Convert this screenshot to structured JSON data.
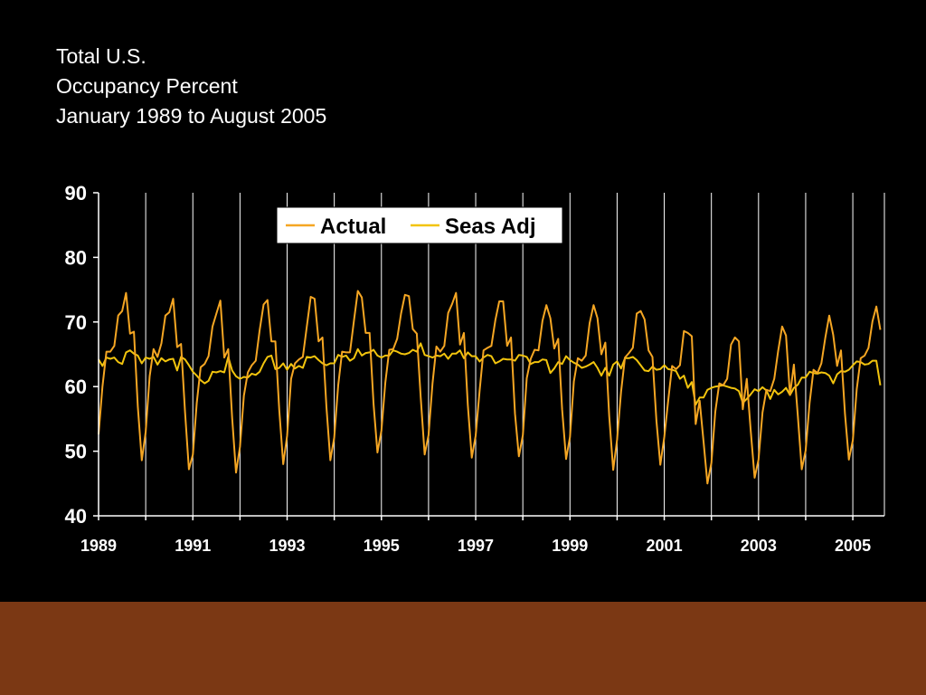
{
  "slide": {
    "background": "#000000",
    "band_color": "#7b3814",
    "title_lines": [
      "Total U.S.",
      "Occupancy Percent",
      "January 1989 to August 2005"
    ]
  },
  "chart_data": {
    "type": "line",
    "xlim": [
      1989.0,
      2005.67
    ],
    "ylim": [
      40,
      90
    ],
    "yticks": [
      40,
      50,
      60,
      70,
      80,
      90
    ],
    "xticks": [
      "1989",
      "1991",
      "1993",
      "1995",
      "1997",
      "1999",
      "2001",
      "2003",
      "2005"
    ],
    "grid": "vertical",
    "legend": "top-center",
    "start": "1989-01",
    "end": "2005-08",
    "frequency": "monthly",
    "series": [
      {
        "name": "Actual",
        "color": "#f5a623",
        "values": [
          52.6,
          60.0,
          65.4,
          65.4,
          66.3,
          71.0,
          71.7,
          74.5,
          68.2,
          68.5,
          56.9,
          48.6,
          53.0,
          61.6,
          65.8,
          64.6,
          66.7,
          71.0,
          71.5,
          73.6,
          66.1,
          66.6,
          56.1,
          47.2,
          49.5,
          57.5,
          63.0,
          63.5,
          64.7,
          69.3,
          71.3,
          73.3,
          64.5,
          65.8,
          55.2,
          46.7,
          50.7,
          58.6,
          62.2,
          63.3,
          64.0,
          68.7,
          72.7,
          73.4,
          67.0,
          67.0,
          56.4,
          48.0,
          52.4,
          61.2,
          63.6,
          64.2,
          64.6,
          69.2,
          73.9,
          73.6,
          67.0,
          67.6,
          56.8,
          48.6,
          52.1,
          60.2,
          65.4,
          65.3,
          65.3,
          70.2,
          74.8,
          73.8,
          68.3,
          68.3,
          57.3,
          49.8,
          53.2,
          60.6,
          65.7,
          65.8,
          67.4,
          71.3,
          74.2,
          74.0,
          68.9,
          68.2,
          58.4,
          49.5,
          52.5,
          60.5,
          66.2,
          65.4,
          66.3,
          71.4,
          72.8,
          74.5,
          66.5,
          68.3,
          57.2,
          49.0,
          52.4,
          59.4,
          65.6,
          66.0,
          66.3,
          70.3,
          73.2,
          73.2,
          66.3,
          67.6,
          55.8,
          49.2,
          52.5,
          61.3,
          64.3,
          65.7,
          65.6,
          70.2,
          72.6,
          70.6,
          65.9,
          67.4,
          56.5,
          48.8,
          52.2,
          60.8,
          64.4,
          64.0,
          64.8,
          69.8,
          72.6,
          70.6,
          65.0,
          66.8,
          55.4,
          47.1,
          51.8,
          59.2,
          64.5,
          65.2,
          66.0,
          71.3,
          71.7,
          70.4,
          65.6,
          64.6,
          54.7,
          47.9,
          52.2,
          57.8,
          63.2,
          62.7,
          63.3,
          68.6,
          68.3,
          67.8,
          54.2,
          57.8,
          51.5,
          45.0,
          48.2,
          56.1,
          60.5,
          60.2,
          61.2,
          66.5,
          67.6,
          67.0,
          56.5,
          61.2,
          53.3,
          45.9,
          48.7,
          56.0,
          59.5,
          59.3,
          61.2,
          65.5,
          69.3,
          67.9,
          58.7,
          63.4,
          55.4,
          47.2,
          50.1,
          57.5,
          62.6,
          62.1,
          63.6,
          67.6,
          71.0,
          68.0,
          63.2,
          65.6,
          55.8,
          48.7,
          51.7,
          59.6,
          64.4,
          64.8,
          66.0,
          70.1,
          72.4,
          68.8
        ]
      },
      {
        "name": "Seas Adj",
        "color": "#f2c40d",
        "values": [
          64.2,
          63.2,
          64.5,
          64.3,
          64.5,
          63.8,
          63.5,
          65.3,
          65.6,
          65.1,
          64.8,
          63.6,
          64.5,
          64.3,
          64.6,
          63.4,
          64.4,
          63.9,
          64.2,
          64.3,
          62.5,
          64.6,
          64.2,
          63.3,
          62.3,
          61.7,
          61.0,
          60.5,
          60.9,
          62.3,
          62.2,
          62.4,
          62.2,
          64.6,
          62.5,
          61.6,
          61.2,
          61.5,
          61.4,
          62.0,
          61.8,
          62.3,
          63.6,
          64.6,
          64.8,
          62.7,
          62.9,
          63.6,
          62.6,
          63.5,
          62.8,
          63.2,
          62.9,
          64.6,
          64.5,
          64.7,
          64.1,
          63.6,
          63.3,
          63.6,
          63.6,
          64.9,
          64.6,
          64.8,
          64.0,
          64.4,
          65.8,
          64.8,
          65.2,
          65.3,
          65.7,
          64.8,
          64.5,
          64.8,
          64.8,
          65.6,
          65.4,
          65.1,
          65.0,
          65.2,
          65.7,
          65.4,
          66.7,
          64.9,
          64.7,
          64.5,
          64.8,
          64.7,
          65.1,
          64.3,
          65.1,
          65.1,
          65.6,
          64.4,
          65.3,
          64.7,
          64.7,
          63.9,
          64.5,
          64.9,
          64.7,
          63.6,
          63.9,
          64.3,
          64.2,
          64.2,
          64.0,
          64.9,
          64.8,
          64.6,
          63.5,
          63.8,
          63.8,
          64.2,
          64.1,
          62.1,
          62.8,
          63.8,
          63.5,
          64.7,
          64.1,
          63.7,
          63.4,
          62.9,
          63.1,
          63.4,
          63.8,
          62.9,
          61.7,
          62.9,
          61.7,
          63.4,
          63.9,
          62.8,
          64.4,
          64.4,
          64.6,
          64.1,
          63.3,
          62.5,
          62.4,
          63.1,
          62.6,
          62.7,
          63.3,
          62.7,
          62.6,
          62.4,
          61.2,
          61.7,
          59.8,
          60.7,
          57.2,
          58.3,
          58.3,
          59.5,
          59.8,
          60.0,
          60.1,
          60.2,
          60.0,
          59.8,
          59.7,
          59.3,
          57.5,
          58.1,
          58.8,
          59.6,
          59.3,
          59.9,
          59.4,
          58.1,
          59.5,
          58.8,
          59.2,
          59.8,
          58.7,
          59.8,
          60.3,
          61.4,
          61.4,
          62.3,
          62.1,
          62.0,
          62.2,
          62.1,
          61.7,
          60.5,
          61.9,
          62.4,
          62.3,
          62.6,
          63.3,
          63.9,
          63.8,
          63.4,
          63.5,
          64.0,
          64.0,
          60.2
        ]
      }
    ]
  }
}
